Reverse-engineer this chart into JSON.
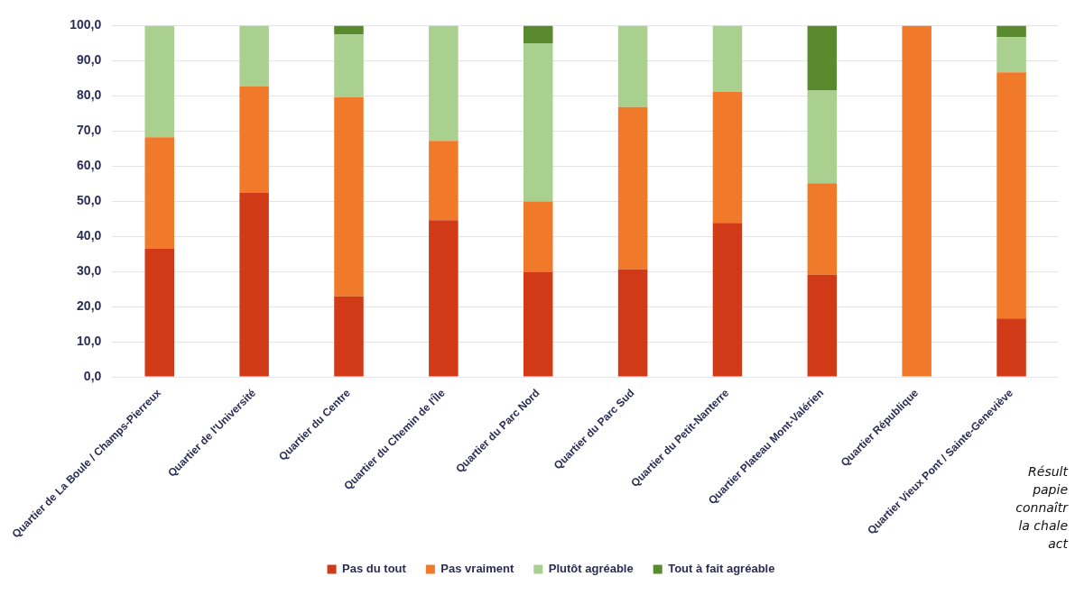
{
  "chart_data": {
    "type": "bar",
    "stacked": true,
    "categories": [
      "Quartier de La Boule / Champs-Pierreux",
      "Quartier de l'Université",
      "Quartier du Centre",
      "Quartier du Chemin de l'Île",
      "Quartier du Parc Nord",
      "Quartier du Parc Sud",
      "Quartier du Petit-Nanterre",
      "Quartier Plateau Mont-Valérien",
      "Quartier République",
      "Quartier Vieux Pont / Sainte-Geneviève"
    ],
    "series": [
      {
        "name": "Pas du tout",
        "color": "#d03a17",
        "values": [
          36.6,
          52.5,
          22.9,
          44.6,
          29.9,
          30.6,
          43.8,
          29.1,
          0,
          16.6
        ]
      },
      {
        "name": "Pas vraiment",
        "color": "#f07a2a",
        "values": [
          31.6,
          30.3,
          56.7,
          22.6,
          20.0,
          46.2,
          37.3,
          26.0,
          100,
          70.1
        ]
      },
      {
        "name": "Plutôt agréable",
        "color": "#a9d08e",
        "values": [
          31.8,
          17.2,
          17.9,
          32.8,
          45.1,
          23.2,
          18.9,
          26.4,
          0,
          10.0
        ]
      },
      {
        "name": "Tout à fait agréable",
        "color": "#5a8a2e",
        "values": [
          0,
          0,
          2.5,
          0,
          5.0,
          0,
          0,
          18.5,
          0,
          3.3
        ]
      }
    ],
    "ylim": [
      0,
      100
    ],
    "yticks": [
      {
        "value": 0,
        "label": "0,0"
      },
      {
        "value": 10,
        "label": "10,0"
      },
      {
        "value": 20,
        "label": "20,0"
      },
      {
        "value": 30,
        "label": "30,0"
      },
      {
        "value": 40,
        "label": "40,0"
      },
      {
        "value": 50,
        "label": "50,0"
      },
      {
        "value": 60,
        "label": "60,0"
      },
      {
        "value": 70,
        "label": "70,0"
      },
      {
        "value": 80,
        "label": "80,0"
      },
      {
        "value": 90,
        "label": "90,0"
      },
      {
        "value": 100,
        "label": "100,0"
      }
    ],
    "grid": "y",
    "legend": "bottom",
    "annotations": [
      "Résult\npapie\nconnaîtr\nla chale\nact"
    ]
  }
}
